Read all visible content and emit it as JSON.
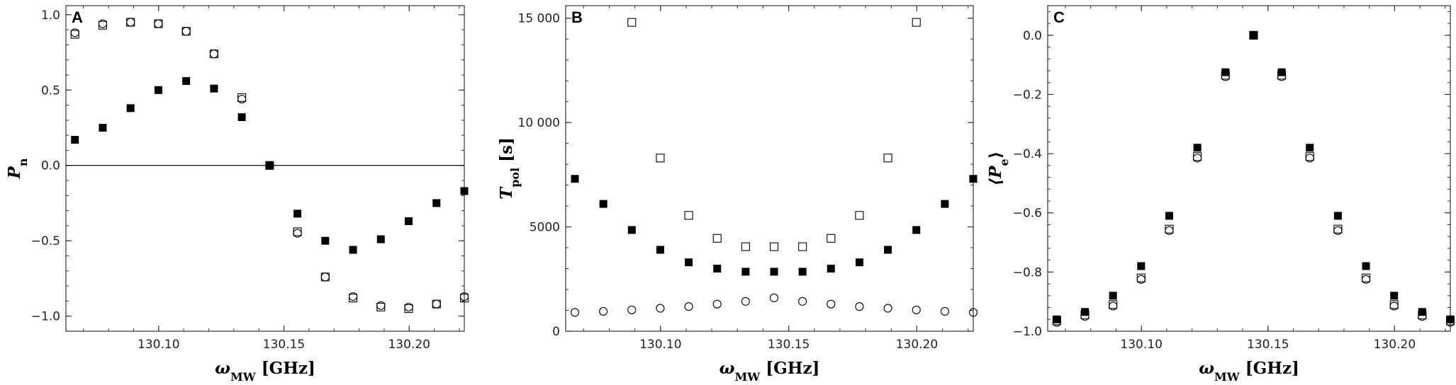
{
  "chart_data": [
    {
      "type": "scatter",
      "panel": "A",
      "title": "",
      "xlabel": {
        "main": "ω",
        "sub": "MW",
        "tail": " [GHz]"
      },
      "ylabel": {
        "main": "P",
        "sub": "n",
        "tail": ""
      },
      "xlim": [
        130.063,
        130.222
      ],
      "ylim": [
        -1.1,
        1.06
      ],
      "xticks": [
        130.1,
        130.15,
        130.2
      ],
      "xtick_labels": [
        "130.10",
        "130.15",
        "130.20"
      ],
      "yticks": [
        -1.0,
        -0.5,
        0.0,
        0.5,
        1.0
      ],
      "ytick_labels": [
        "−1.0",
        "−0.5",
        "0.0",
        "0.5",
        "1.0"
      ],
      "zero_line": true,
      "grid": false,
      "series": [
        {
          "marker": "filled-square",
          "x": [
            130.0666,
            130.0777,
            130.0888,
            130.0999,
            130.111,
            130.1221,
            130.1332,
            130.1443,
            130.1554,
            130.1665,
            130.1776,
            130.1887,
            130.1998,
            130.2109,
            130.222
          ],
          "y": [
            0.17,
            0.25,
            0.38,
            0.5,
            0.56,
            0.51,
            0.32,
            0.0,
            -0.32,
            -0.5,
            -0.56,
            -0.49,
            -0.37,
            -0.25,
            -0.17
          ]
        },
        {
          "marker": "open-square",
          "x": [
            130.0666,
            130.0777,
            130.0888,
            130.0999,
            130.111,
            130.1221,
            130.1332,
            130.1443,
            130.1554,
            130.1665,
            130.1776,
            130.1887,
            130.1998,
            130.2109,
            130.222
          ],
          "y": [
            0.87,
            0.93,
            0.95,
            0.94,
            0.89,
            0.74,
            0.45,
            0.0,
            -0.44,
            -0.74,
            -0.88,
            -0.94,
            -0.95,
            -0.92,
            -0.88
          ]
        },
        {
          "marker": "open-circle",
          "x": [
            130.0666,
            130.0777,
            130.0888,
            130.0999,
            130.111,
            130.1221,
            130.1332,
            130.1443,
            130.1554,
            130.1665,
            130.1776,
            130.1887,
            130.1998,
            130.2109,
            130.222
          ],
          "y": [
            0.88,
            0.94,
            0.95,
            0.94,
            0.89,
            0.74,
            0.44,
            0.0,
            -0.45,
            -0.74,
            -0.87,
            -0.93,
            -0.94,
            -0.92,
            -0.87
          ]
        }
      ]
    },
    {
      "type": "scatter",
      "panel": "B",
      "title": "",
      "xlabel": {
        "main": "ω",
        "sub": "MW",
        "tail": " [GHz]"
      },
      "ylabel": {
        "main": "T",
        "sub": "pol",
        "tail": " [s]"
      },
      "xlim": [
        130.063,
        130.222
      ],
      "ylim": [
        0,
        15600
      ],
      "xticks": [
        130.1,
        130.15,
        130.2
      ],
      "xtick_labels": [
        "130.10",
        "130.15",
        "130.20"
      ],
      "yticks": [
        0,
        5000,
        10000,
        15000
      ],
      "ytick_labels": [
        "0",
        "5000",
        "10 000",
        "15 000"
      ],
      "zero_line": false,
      "grid": false,
      "series": [
        {
          "marker": "filled-square",
          "x": [
            130.0666,
            130.0777,
            130.0888,
            130.0999,
            130.111,
            130.1221,
            130.1332,
            130.1443,
            130.1554,
            130.1665,
            130.1776,
            130.1887,
            130.1998,
            130.2109,
            130.222
          ],
          "y": [
            7300,
            6100,
            4850,
            3900,
            3300,
            3000,
            2850,
            2850,
            2850,
            3000,
            3300,
            3900,
            4850,
            6100,
            7300
          ]
        },
        {
          "marker": "open-square",
          "x": [
            130.0888,
            130.0999,
            130.111,
            130.1221,
            130.1332,
            130.1443,
            130.1554,
            130.1665,
            130.1776,
            130.1887,
            130.1998
          ],
          "y": [
            14800,
            8300,
            5550,
            4450,
            4050,
            4050,
            4050,
            4450,
            5550,
            8300,
            14800
          ]
        },
        {
          "marker": "open-circle",
          "x": [
            130.0666,
            130.0777,
            130.0888,
            130.0999,
            130.111,
            130.1221,
            130.1332,
            130.1443,
            130.1554,
            130.1665,
            130.1776,
            130.1887,
            130.1998,
            130.2109,
            130.222
          ],
          "y": [
            900,
            950,
            1020,
            1100,
            1180,
            1300,
            1430,
            1600,
            1430,
            1300,
            1180,
            1100,
            1020,
            950,
            900
          ]
        }
      ]
    },
    {
      "type": "scatter",
      "panel": "C",
      "title": "",
      "xlabel": {
        "main": "ω",
        "sub": "MW",
        "tail": " [GHz]"
      },
      "ylabel": {
        "main": "⟨P",
        "sub": "e",
        "tail": "⟩"
      },
      "xlim": [
        130.063,
        130.222
      ],
      "ylim": [
        -1.0,
        0.1
      ],
      "xticks": [
        130.1,
        130.15,
        130.2
      ],
      "xtick_labels": [
        "130.10",
        "130.15",
        "130.20"
      ],
      "yticks": [
        -1.0,
        -0.8,
        -0.6,
        -0.4,
        -0.2,
        0.0
      ],
      "ytick_labels": [
        "−1.0",
        "−0.8",
        "−0.6",
        "−0.4",
        "−0.2",
        "0.0"
      ],
      "zero_line": false,
      "grid": false,
      "series": [
        {
          "marker": "open-circle",
          "x": [
            130.0666,
            130.0777,
            130.0888,
            130.0999,
            130.111,
            130.1221,
            130.1332,
            130.1443,
            130.1554,
            130.1665,
            130.1776,
            130.1887,
            130.1998,
            130.2109,
            130.222
          ],
          "y": [
            -0.97,
            -0.95,
            -0.915,
            -0.825,
            -0.66,
            -0.415,
            -0.14,
            0.0,
            -0.14,
            -0.415,
            -0.66,
            -0.825,
            -0.915,
            -0.95,
            -0.97
          ]
        },
        {
          "marker": "open-square",
          "x": [
            130.0666,
            130.0777,
            130.0888,
            130.0999,
            130.111,
            130.1221,
            130.1332,
            130.1443,
            130.1554,
            130.1665,
            130.1776,
            130.1887,
            130.1998,
            130.2109,
            130.222
          ],
          "y": [
            -0.965,
            -0.945,
            -0.91,
            -0.82,
            -0.655,
            -0.41,
            -0.135,
            0.0,
            -0.135,
            -0.41,
            -0.655,
            -0.82,
            -0.91,
            -0.945,
            -0.965
          ]
        },
        {
          "marker": "filled-square",
          "x": [
            130.0666,
            130.0777,
            130.0888,
            130.0999,
            130.111,
            130.1221,
            130.1332,
            130.1443,
            130.1554,
            130.1665,
            130.1776,
            130.1887,
            130.1998,
            130.2109,
            130.222
          ],
          "y": [
            -0.96,
            -0.935,
            -0.88,
            -0.78,
            -0.61,
            -0.38,
            -0.125,
            0.0,
            -0.125,
            -0.38,
            -0.61,
            -0.78,
            -0.88,
            -0.935,
            -0.96
          ]
        }
      ]
    }
  ]
}
